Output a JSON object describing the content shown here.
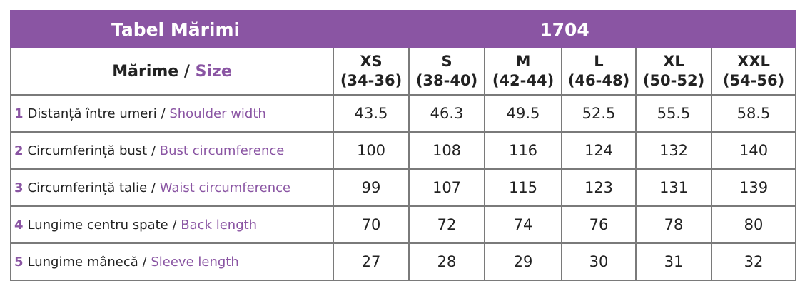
{
  "header": {
    "title": "Tabel Mărimi",
    "model": "1704"
  },
  "size_label": {
    "ro": "Mărime",
    "separator": "/",
    "en": "Size"
  },
  "sizes": [
    {
      "name": "XS",
      "range": "(34-36)"
    },
    {
      "name": "S",
      "range": "(38-40)"
    },
    {
      "name": "M",
      "range": "(42-44)"
    },
    {
      "name": "L",
      "range": "(46-48)"
    },
    {
      "name": "XL",
      "range": "(50-52)"
    },
    {
      "name": "XXL",
      "range": "(54-56)"
    }
  ],
  "rows": [
    {
      "number": "1",
      "ro": "Distanță între umeri",
      "separator": "/",
      "en": "Shoulder width",
      "values": [
        43.5,
        46.3,
        49.5,
        52.5,
        55.5,
        58.5
      ]
    },
    {
      "number": "2",
      "ro": "Circumferință bust",
      "separator": "/",
      "en": "Bust circumference",
      "values": [
        100,
        108,
        116,
        124,
        132,
        140
      ]
    },
    {
      "number": "3",
      "ro": "Circumferință talie",
      "separator": "/",
      "en": "Waist circumference",
      "values": [
        99,
        107,
        115,
        123,
        131,
        139
      ]
    },
    {
      "number": "4",
      "ro": "Lungime centru spate",
      "separator": "/",
      "en": "Back length",
      "values": [
        70,
        72,
        74,
        76,
        78,
        80
      ]
    },
    {
      "number": "5",
      "ro": "Lungime mânecă",
      "separator": "/",
      "en": "Sleeve length",
      "values": [
        27,
        28,
        29,
        30,
        31,
        32
      ]
    }
  ]
}
